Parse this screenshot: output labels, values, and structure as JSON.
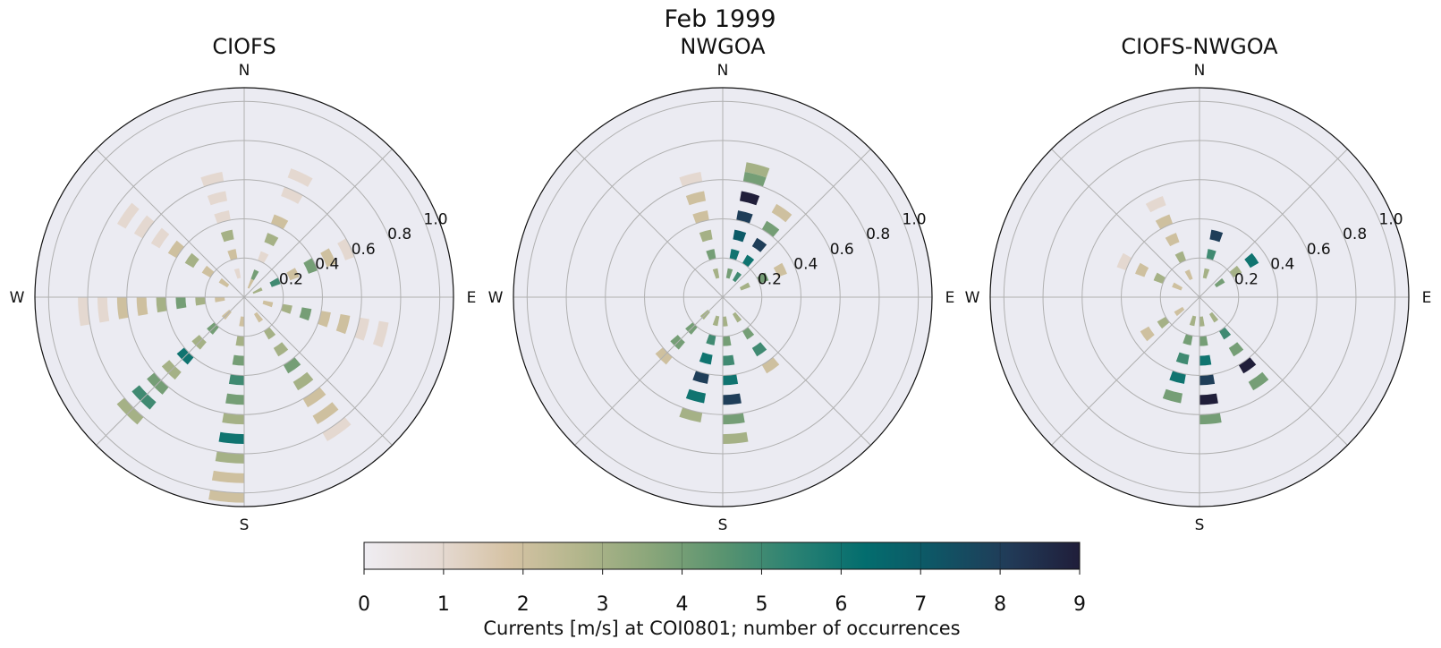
{
  "suptitle": "Feb 1999",
  "colorbar": {
    "label": "Currents [m/s] at COI0801; number of occurrences",
    "ticks": [
      "0",
      "1",
      "2",
      "3",
      "4",
      "5",
      "6",
      "7",
      "8",
      "9"
    ],
    "vmin": 0,
    "vmax": 9,
    "colors": [
      "#efedf2",
      "#e6dbd5",
      "#d6c3a5",
      "#b3b68c",
      "#8aa67a",
      "#5a9470",
      "#2b8273",
      "#036d6e",
      "#0f5565",
      "#213b58",
      "#201e3a"
    ]
  },
  "panel_colors": {
    "background": "#ebebf2",
    "grid": "#b0b0b0",
    "frame": "#111111"
  },
  "chart_data": [
    {
      "type": "polar-histogram",
      "title": "CIOFS",
      "direction_labels": [
        "N",
        "E",
        "S",
        "W"
      ],
      "radial_ticks": [
        "0.2",
        "0.4",
        "0.6",
        "0.8",
        "1.0"
      ],
      "rlim": [
        0,
        1.07
      ],
      "direction_bins": 36,
      "speed_bin_width": 0.05,
      "bins": [
        {
          "dir": 2,
          "r": [
            0.05,
            0.1,
            0.2,
            0.3,
            0.4,
            0.55,
            0.65
          ],
          "c": [
            2,
            4,
            1,
            3,
            2,
            1,
            1
          ]
        },
        {
          "dir": 6,
          "r": [
            0.05,
            0.15,
            0.25,
            0.35,
            0.45,
            0.55
          ],
          "c": [
            3,
            5,
            2,
            4,
            2,
            1
          ]
        },
        {
          "dir": 10,
          "r": [
            0.1,
            0.2,
            0.3,
            0.4,
            0.5,
            0.6,
            0.7
          ],
          "c": [
            2,
            3,
            4,
            2,
            2,
            1,
            1
          ]
        },
        {
          "dir": 14,
          "r": [
            0.1,
            0.2,
            0.3,
            0.4,
            0.5,
            0.6,
            0.7,
            0.8
          ],
          "c": [
            2,
            3,
            3,
            4,
            3,
            2,
            2,
            1
          ]
        },
        {
          "dir": 18,
          "r": [
            0.1,
            0.2,
            0.3,
            0.4,
            0.5,
            0.6,
            0.7,
            0.8,
            0.9,
            1.0
          ],
          "c": [
            2,
            3,
            4,
            5,
            4,
            3,
            6,
            3,
            2,
            2
          ]
        },
        {
          "dir": 22,
          "r": [
            0.1,
            0.2,
            0.3,
            0.4,
            0.5,
            0.6,
            0.7,
            0.8
          ],
          "c": [
            2,
            4,
            3,
            6,
            3,
            4,
            5,
            3
          ]
        },
        {
          "dir": 26,
          "r": [
            0.1,
            0.2,
            0.3,
            0.4,
            0.5,
            0.6,
            0.7,
            0.8
          ],
          "c": [
            2,
            3,
            4,
            3,
            2,
            2,
            1,
            1
          ]
        },
        {
          "dir": 30,
          "r": [
            0.1,
            0.2,
            0.3,
            0.4,
            0.5,
            0.6,
            0.7
          ],
          "c": [
            2,
            2,
            3,
            2,
            1,
            1,
            1
          ]
        },
        {
          "dir": 34,
          "r": [
            0.1,
            0.2,
            0.3,
            0.4,
            0.5,
            0.6
          ],
          "c": [
            1,
            2,
            3,
            1,
            1,
            1
          ]
        }
      ]
    },
    {
      "type": "polar-histogram",
      "title": "NWGOA",
      "direction_labels": [
        "N",
        "E",
        "S",
        "W"
      ],
      "radial_ticks": [
        "0.2",
        "0.4",
        "0.6",
        "0.8",
        "1.0"
      ],
      "rlim": [
        0,
        1.07
      ],
      "direction_bins": 36,
      "speed_bin_width": 0.05,
      "bins": [
        {
          "dir": 1,
          "r": [
            0.1,
            0.2,
            0.3,
            0.4,
            0.5,
            0.6,
            0.65
          ],
          "c": [
            4,
            6,
            7,
            8,
            9,
            4,
            3
          ]
        },
        {
          "dir": 3,
          "r": [
            0.1,
            0.2,
            0.3,
            0.4,
            0.5
          ],
          "c": [
            5,
            6,
            8,
            4,
            2
          ]
        },
        {
          "dir": 6,
          "r": [
            0.1,
            0.2,
            0.3
          ],
          "c": [
            3,
            4,
            2
          ]
        },
        {
          "dir": 14,
          "r": [
            0.1,
            0.2,
            0.3,
            0.4
          ],
          "c": [
            3,
            4,
            5,
            2
          ]
        },
        {
          "dir": 17,
          "r": [
            0.1,
            0.2,
            0.3,
            0.4,
            0.5,
            0.6,
            0.7
          ],
          "c": [
            3,
            4,
            5,
            6,
            8,
            4,
            3
          ]
        },
        {
          "dir": 19,
          "r": [
            0.1,
            0.2,
            0.3,
            0.4,
            0.5,
            0.6
          ],
          "c": [
            3,
            5,
            6,
            8,
            6,
            3
          ]
        },
        {
          "dir": 22,
          "r": [
            0.1,
            0.2,
            0.3,
            0.4
          ],
          "c": [
            3,
            4,
            4,
            2
          ]
        },
        {
          "dir": 34,
          "r": [
            0.1,
            0.2,
            0.3,
            0.4,
            0.5,
            0.6
          ],
          "c": [
            3,
            4,
            3,
            2,
            2,
            1
          ]
        }
      ]
    },
    {
      "type": "polar-histogram",
      "title": "CIOFS-NWGOA",
      "direction_labels": [
        "N",
        "E",
        "S",
        "W"
      ],
      "radial_ticks": [
        "0.2",
        "0.4",
        "0.6",
        "0.8",
        "1.0"
      ],
      "rlim": [
        0,
        1.07
      ],
      "direction_bins": 36,
      "speed_bin_width": 0.05,
      "bins": [
        {
          "dir": 1,
          "r": [
            0.1,
            0.2,
            0.3
          ],
          "c": [
            3,
            5,
            8
          ]
        },
        {
          "dir": 5,
          "r": [
            0.1,
            0.2,
            0.3
          ],
          "c": [
            4,
            3,
            6
          ]
        },
        {
          "dir": 14,
          "r": [
            0.1,
            0.2,
            0.3,
            0.4,
            0.5
          ],
          "c": [
            3,
            5,
            4,
            9,
            4
          ]
        },
        {
          "dir": 17,
          "r": [
            0.1,
            0.2,
            0.3,
            0.4,
            0.5,
            0.6
          ],
          "c": [
            3,
            4,
            6,
            8,
            9,
            4
          ]
        },
        {
          "dir": 19,
          "r": [
            0.1,
            0.2,
            0.3,
            0.4,
            0.5
          ],
          "c": [
            3,
            4,
            5,
            6,
            4
          ]
        },
        {
          "dir": 23,
          "r": [
            0.1,
            0.2,
            0.3
          ],
          "c": [
            2,
            3,
            2
          ]
        },
        {
          "dir": 29,
          "r": [
            0.1,
            0.2,
            0.3,
            0.4
          ],
          "c": [
            2,
            3,
            2,
            1
          ]
        },
        {
          "dir": 33,
          "r": [
            0.1,
            0.2,
            0.3,
            0.4,
            0.5
          ],
          "c": [
            2,
            3,
            2,
            2,
            1
          ]
        }
      ]
    }
  ]
}
